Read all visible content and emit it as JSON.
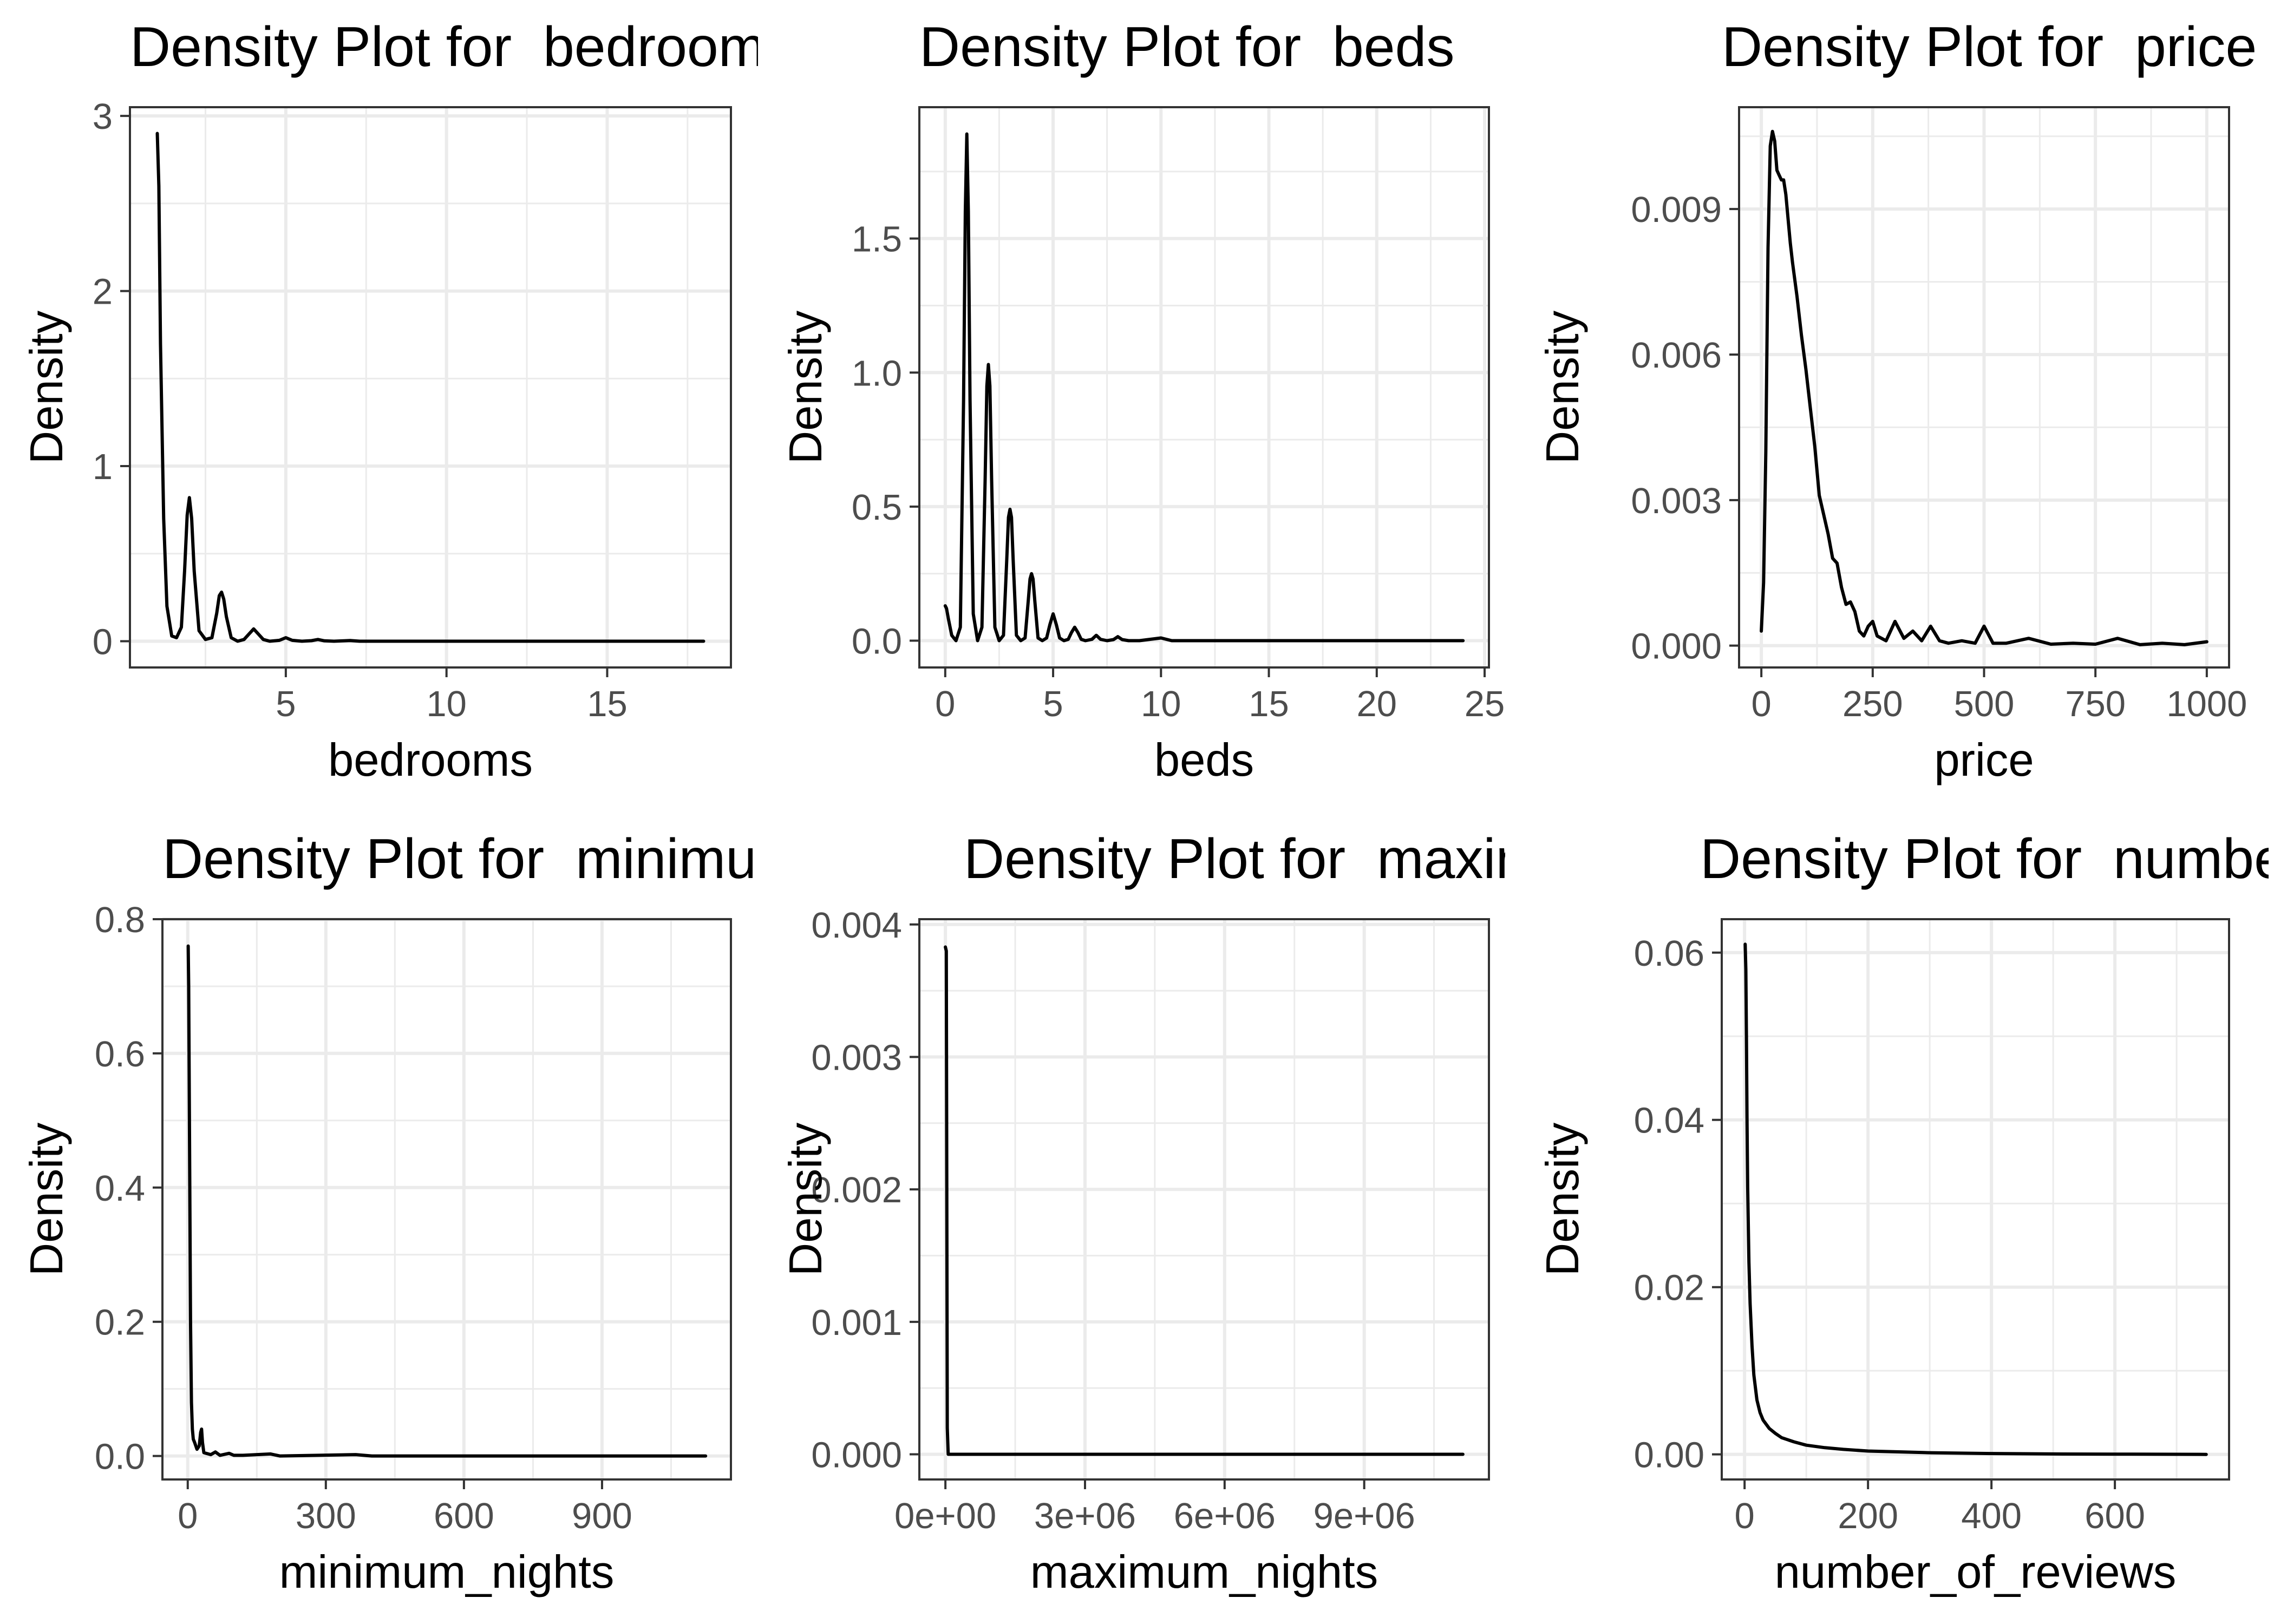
{
  "chart_data": [
    {
      "type": "line",
      "title": "Density Plot for  bedrooms",
      "xlabel": "bedrooms",
      "ylabel": "Density",
      "xlim": [
        0.15,
        18.85
      ],
      "ylim": [
        -0.15,
        3.05
      ],
      "x_ticks": [
        5,
        10,
        15
      ],
      "x_tick_labels": [
        "5",
        "10",
        "15"
      ],
      "y_ticks": [
        0,
        1,
        2,
        3
      ],
      "y_tick_labels": [
        "0",
        "1",
        "2",
        "3"
      ],
      "grid": true,
      "series": [
        {
          "x": [
            1,
            1.05,
            1.1,
            1.2,
            1.3,
            1.45,
            1.6,
            1.75,
            1.85,
            1.93,
            2,
            2.07,
            2.15,
            2.3,
            2.5,
            2.7,
            2.85,
            2.93,
            3,
            3.07,
            3.15,
            3.3,
            3.5,
            3.7,
            3.85,
            4,
            4.15,
            4.3,
            4.5,
            4.8,
            5,
            5.2,
            5.5,
            5.8,
            6,
            6.2,
            6.5,
            6.8,
            7,
            7.3,
            8,
            9,
            10,
            12,
            14,
            16,
            18
          ],
          "y": [
            2.9,
            2.6,
            1.7,
            0.7,
            0.2,
            0.03,
            0.02,
            0.08,
            0.4,
            0.72,
            0.82,
            0.7,
            0.4,
            0.06,
            0.01,
            0.02,
            0.16,
            0.26,
            0.28,
            0.24,
            0.14,
            0.02,
            0.0,
            0.01,
            0.04,
            0.07,
            0.04,
            0.01,
            0.0,
            0.005,
            0.02,
            0.005,
            0.0,
            0.003,
            0.01,
            0.002,
            0.0,
            0.002,
            0.004,
            0.0,
            0.0,
            0.0,
            0.0,
            0.0,
            0.0,
            0.0,
            0.0
          ]
        }
      ]
    },
    {
      "type": "line",
      "title": "Density Plot for  beds",
      "xlabel": "beds",
      "ylabel": "Density",
      "xlim": [
        -1.2,
        25.2
      ],
      "ylim": [
        -0.1,
        1.99
      ],
      "x_ticks": [
        0,
        5,
        10,
        15,
        20,
        25
      ],
      "x_tick_labels": [
        "0",
        "5",
        "10",
        "15",
        "20",
        "25"
      ],
      "y_ticks": [
        0,
        0.5,
        1,
        1.5
      ],
      "y_tick_labels": [
        "0.0",
        "0.5",
        "1.0",
        "1.5"
      ],
      "grid": true,
      "series": [
        {
          "x": [
            0,
            0.06,
            0.15,
            0.3,
            0.5,
            0.7,
            0.85,
            0.93,
            1,
            1.07,
            1.15,
            1.3,
            1.5,
            1.7,
            1.85,
            1.93,
            2,
            2.07,
            2.15,
            2.3,
            2.5,
            2.7,
            2.85,
            2.93,
            3,
            3.07,
            3.15,
            3.3,
            3.5,
            3.7,
            3.85,
            3.93,
            4,
            4.07,
            4.15,
            4.3,
            4.5,
            4.7,
            4.85,
            5,
            5.15,
            5.3,
            5.5,
            5.7,
            5.85,
            6,
            6.15,
            6.3,
            6.5,
            6.8,
            7,
            7.2,
            7.5,
            7.8,
            8,
            8.2,
            8.5,
            9,
            10,
            10.5,
            12,
            15,
            18,
            21,
            24
          ],
          "y": [
            0.13,
            0.12,
            0.08,
            0.02,
            0.0,
            0.05,
            0.9,
            1.6,
            1.89,
            1.6,
            0.9,
            0.1,
            0.0,
            0.05,
            0.6,
            0.95,
            1.03,
            0.95,
            0.6,
            0.05,
            0.0,
            0.02,
            0.3,
            0.46,
            0.49,
            0.46,
            0.3,
            0.02,
            0.0,
            0.01,
            0.15,
            0.23,
            0.25,
            0.23,
            0.15,
            0.01,
            0.0,
            0.01,
            0.06,
            0.1,
            0.06,
            0.01,
            0.0,
            0.005,
            0.03,
            0.05,
            0.03,
            0.005,
            0.0,
            0.005,
            0.02,
            0.005,
            0.0,
            0.004,
            0.015,
            0.004,
            0.0,
            0.0,
            0.01,
            0.0,
            0.0,
            0.0,
            0.0,
            0.0,
            0.0
          ]
        }
      ]
    },
    {
      "type": "line",
      "title": "Density Plot for  price",
      "xlabel": "price",
      "ylabel": "Density",
      "xlim": [
        -50,
        1050
      ],
      "ylim": [
        -0.00045,
        0.0111
      ],
      "x_ticks": [
        0,
        250,
        500,
        750,
        1000
      ],
      "x_tick_labels": [
        "0",
        "250",
        "500",
        "750",
        "1000"
      ],
      "y_ticks": [
        0,
        0.003,
        0.006,
        0.009
      ],
      "y_tick_labels": [
        "0.000",
        "0.003",
        "0.006",
        "0.009"
      ],
      "grid": true,
      "series": [
        {
          "x": [
            0,
            5,
            10,
            15,
            20,
            25,
            30,
            35,
            40,
            45,
            50,
            55,
            60,
            65,
            70,
            80,
            90,
            100,
            110,
            120,
            130,
            140,
            150,
            160,
            170,
            180,
            190,
            200,
            210,
            220,
            230,
            240,
            250,
            260,
            280,
            300,
            320,
            340,
            360,
            380,
            400,
            420,
            450,
            480,
            500,
            520,
            550,
            600,
            650,
            700,
            750,
            800,
            850,
            900,
            950,
            1000
          ],
          "y": [
            0.0003,
            0.0013,
            0.004,
            0.0082,
            0.0103,
            0.0106,
            0.0104,
            0.0098,
            0.0097,
            0.0096,
            0.0096,
            0.0093,
            0.0088,
            0.0083,
            0.0079,
            0.0072,
            0.0064,
            0.0057,
            0.0049,
            0.0041,
            0.0031,
            0.0027,
            0.0023,
            0.0018,
            0.0017,
            0.0012,
            0.00085,
            0.0009,
            0.0007,
            0.0003,
            0.0002,
            0.0004,
            0.0005,
            0.0002,
            0.0001,
            0.0005,
            0.00015,
            0.0003,
            0.0001,
            0.0004,
            0.0001,
            5e-05,
            0.0001,
            5e-05,
            0.0004,
            5e-05,
            5e-05,
            0.00015,
            3e-05,
            5e-05,
            3e-05,
            0.00015,
            2e-05,
            5e-05,
            2e-05,
            8e-05
          ]
        }
      ]
    },
    {
      "type": "line",
      "title": "Density Plot for  minimum_nights",
      "xlabel": "minimum_nights",
      "ylabel": "Density",
      "xlim": [
        -55,
        1180
      ],
      "ylim": [
        -0.035,
        0.8
      ],
      "x_ticks": [
        0,
        300,
        600,
        900
      ],
      "x_tick_labels": [
        "0",
        "300",
        "600",
        "900"
      ],
      "y_ticks": [
        0,
        0.2,
        0.4,
        0.6,
        0.8
      ],
      "y_tick_labels": [
        "0.0",
        "0.2",
        "0.4",
        "0.6",
        "0.8"
      ],
      "grid": true,
      "series": [
        {
          "x": [
            1,
            2,
            4,
            6,
            8,
            10,
            12,
            15,
            20,
            25,
            28,
            30,
            32,
            35,
            40,
            50,
            60,
            70,
            90,
            100,
            120,
            180,
            200,
            365,
            400,
            600,
            800,
            1000,
            1125
          ],
          "y": [
            0.76,
            0.7,
            0.45,
            0.2,
            0.08,
            0.04,
            0.025,
            0.02,
            0.01,
            0.015,
            0.035,
            0.04,
            0.02,
            0.005,
            0.004,
            0.002,
            0.006,
            0.001,
            0.004,
            0.001,
            0.001,
            0.003,
            0.0,
            0.002,
            0.0,
            0.0,
            0.0,
            0.0,
            0.0
          ]
        }
      ]
    },
    {
      "type": "line",
      "title": "Density Plot for  maximum_nights",
      "xlabel": "maximum_nights",
      "ylabel": "Density",
      "xlim": [
        -560000,
        11680000
      ],
      "ylim": [
        -0.00019,
        0.00404
      ],
      "x_ticks": [
        0,
        3000000,
        6000000,
        9000000
      ],
      "x_tick_labels": [
        "0e+00",
        "3e+06",
        "6e+06",
        "9e+06"
      ],
      "y_ticks": [
        0,
        0.001,
        0.002,
        0.003,
        0.004
      ],
      "y_tick_labels": [
        "0.000",
        "0.001",
        "0.002",
        "0.003",
        "0.004"
      ],
      "grid": true,
      "series": [
        {
          "x": [
            0,
            20000,
            40000,
            60000,
            1000000,
            5000000,
            11120000
          ],
          "y": [
            0.00383,
            0.0038,
            0.0002,
            0.0,
            0.0,
            0.0,
            0.0
          ]
        }
      ]
    },
    {
      "type": "line",
      "title": "Density Plot for  number_of_reviews",
      "xlabel": "number_of_reviews",
      "ylabel": "Density",
      "xlim": [
        -37,
        785
      ],
      "ylim": [
        -0.003,
        0.064
      ],
      "x_ticks": [
        0,
        200,
        400,
        600
      ],
      "x_tick_labels": [
        "0",
        "200",
        "400",
        "600"
      ],
      "y_ticks": [
        0,
        0.02,
        0.04,
        0.06
      ],
      "y_tick_labels": [
        "0.00",
        "0.02",
        "0.04",
        "0.06"
      ],
      "grid": true,
      "series": [
        {
          "x": [
            1,
            2,
            3,
            4,
            5,
            7,
            9,
            12,
            15,
            20,
            25,
            30,
            40,
            50,
            60,
            80,
            100,
            130,
            160,
            200,
            250,
            300,
            400,
            500,
            600,
            748
          ],
          "y": [
            0.061,
            0.058,
            0.05,
            0.04,
            0.032,
            0.023,
            0.018,
            0.013,
            0.0095,
            0.0065,
            0.005,
            0.0041,
            0.0031,
            0.0025,
            0.002,
            0.0015,
            0.0011,
            0.0008,
            0.0006,
            0.0004,
            0.0003,
            0.0002,
            0.0001,
            5e-05,
            3e-05,
            0.0
          ]
        }
      ]
    }
  ]
}
